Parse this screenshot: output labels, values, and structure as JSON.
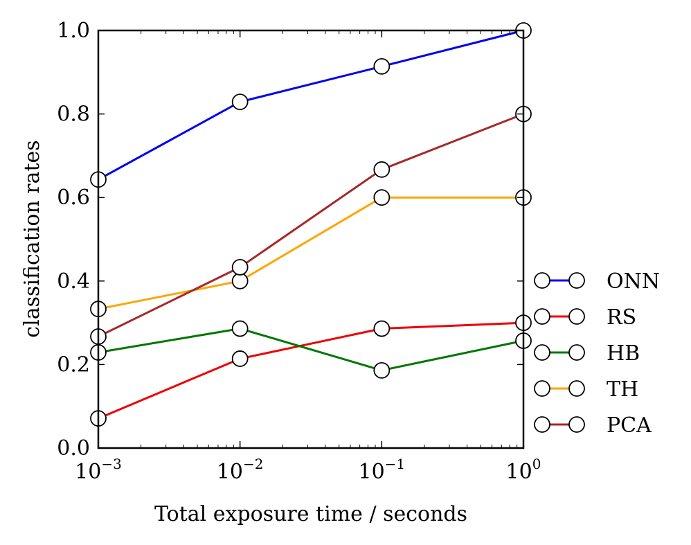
{
  "chart_data": {
    "type": "line",
    "title": "",
    "xlabel": "Total exposure time / seconds",
    "ylabel": "classification rates",
    "xscale": "log",
    "xlim": [
      0.001,
      1
    ],
    "ylim": [
      0.0,
      1.0
    ],
    "grid": false,
    "legend_position": "outside-right",
    "x": [
      0.001,
      0.01,
      0.1,
      1
    ],
    "x_ticks": [
      {
        "base": "10",
        "exp": "−3"
      },
      {
        "base": "10",
        "exp": "−2"
      },
      {
        "base": "10",
        "exp": "−1"
      },
      {
        "base": "10",
        "exp": "0"
      }
    ],
    "y_ticks": [
      {
        "value": 0.0,
        "label": "0.0"
      },
      {
        "value": 0.2,
        "label": "0.2"
      },
      {
        "value": 0.4,
        "label": "0.4"
      },
      {
        "value": 0.6,
        "label": "0.6"
      },
      {
        "value": 0.8,
        "label": "0.8"
      },
      {
        "value": 1.0,
        "label": "1.0"
      }
    ],
    "series": [
      {
        "name": "ONN",
        "color": "#0000ee",
        "values": [
          0.643,
          0.829,
          0.914,
          1.0
        ]
      },
      {
        "name": "RS",
        "color": "#ee0000",
        "values": [
          0.071,
          0.214,
          0.286,
          0.3
        ]
      },
      {
        "name": "HB",
        "color": "#007700",
        "values": [
          0.229,
          0.286,
          0.186,
          0.257
        ]
      },
      {
        "name": "TH",
        "color": "#ffa500",
        "values": [
          0.333,
          0.4,
          0.6,
          0.6
        ]
      },
      {
        "name": "PCA",
        "color": "#a52a2a",
        "values": [
          0.267,
          0.433,
          0.667,
          0.8
        ]
      }
    ]
  }
}
